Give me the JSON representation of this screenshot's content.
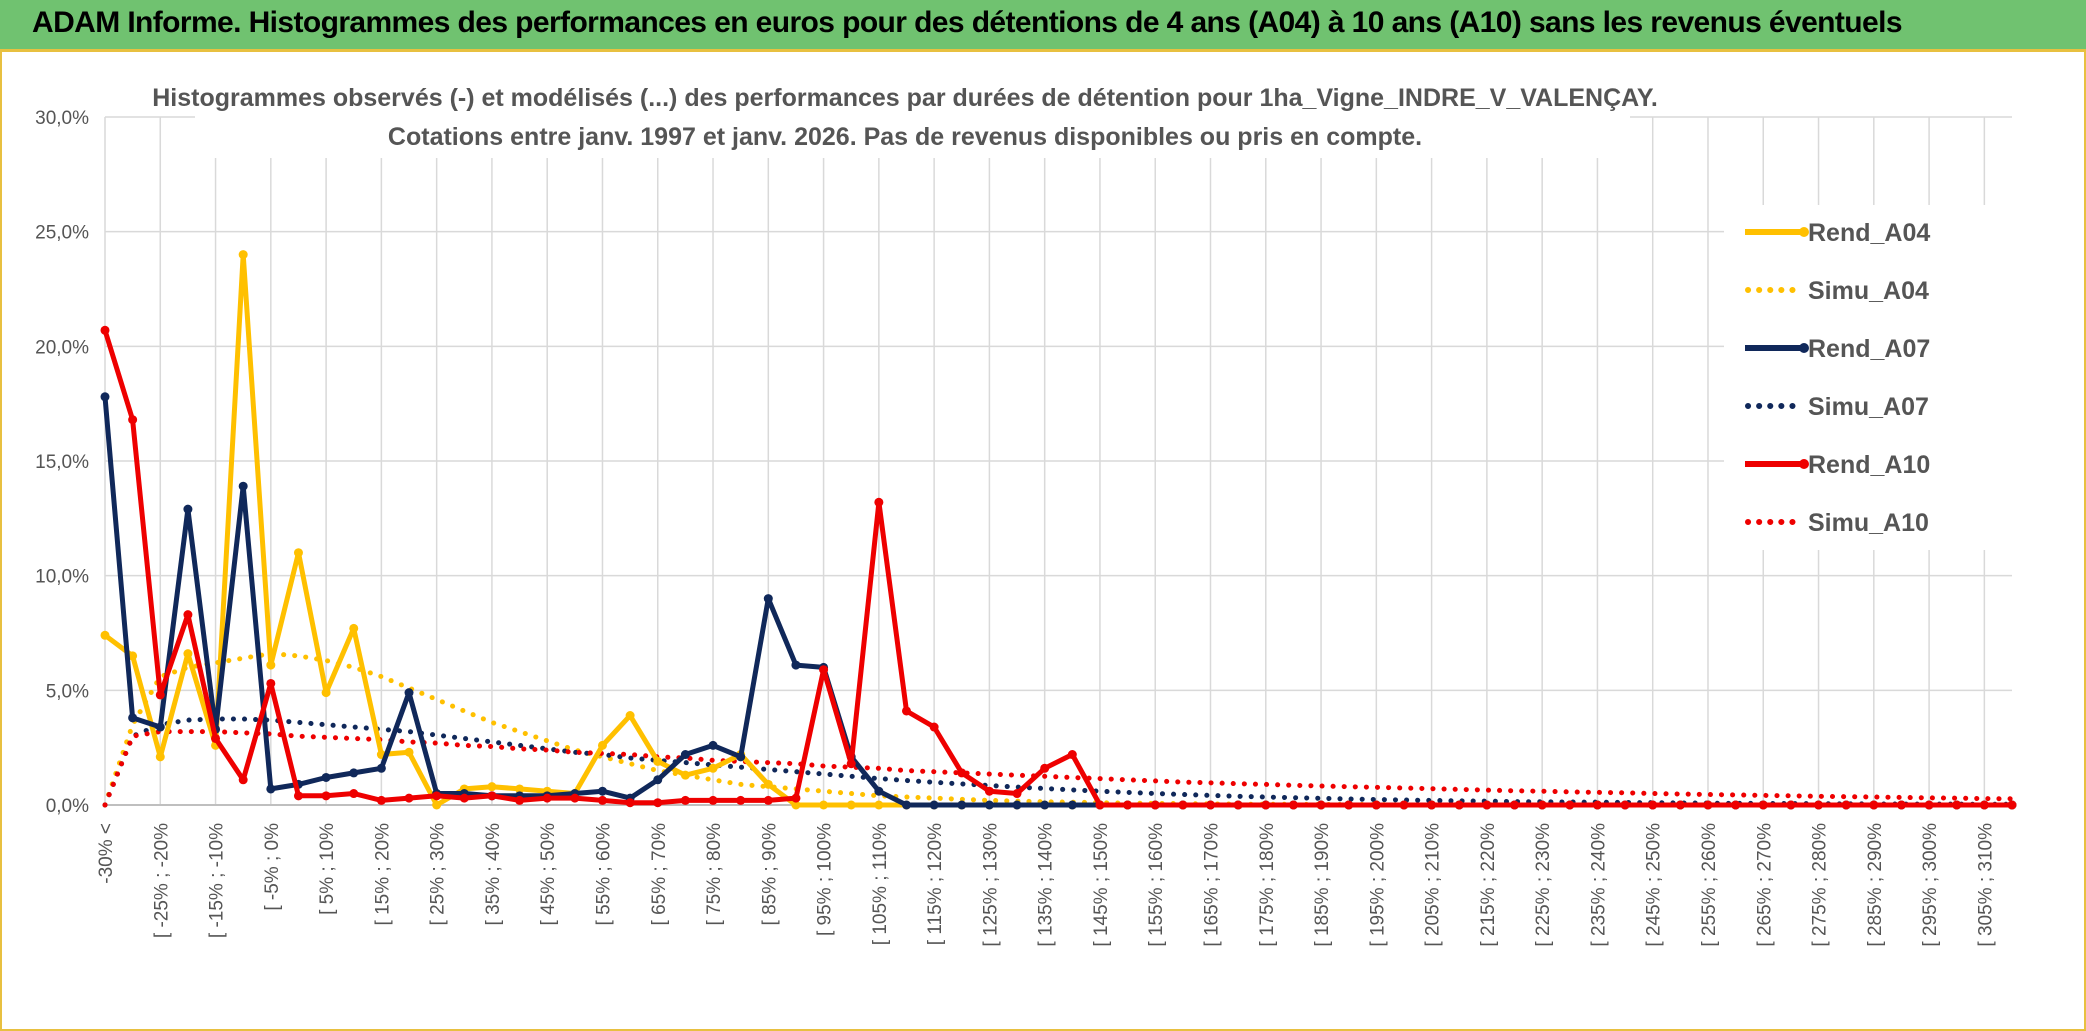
{
  "header": {
    "title": "ADAM Informe. Histogrammes des performances en euros pour des détentions de 4 ans (A04) à 10 ans (A10) sans les revenus éventuels"
  },
  "chart_data": {
    "type": "line",
    "title": "Histogrammes observés (-) et modélisés (...) des performances par durées de détention pour 1ha_Vigne_INDRE_V_VALENÇAY.",
    "subtitle": "Cotations entre janv. 1997 et janv. 2026. Pas de revenus disponibles ou pris en compte.",
    "ylim": [
      0,
      30
    ],
    "yticks": [
      "0,0%",
      "5,0%",
      "10,0%",
      "15,0%",
      "20,0%",
      "25,0%",
      "30,0%"
    ],
    "tick_labels": [
      "-30% <",
      "[ -25% ; -20%",
      "[ -15% ; -10%",
      "[ -5% ; 0%",
      "[ 5% ; 10%",
      "[ 15% ; 20%",
      "[ 25% ; 30%",
      "[ 35% ; 40%",
      "[ 45% ; 50%",
      "[ 55% ; 60%",
      "[ 65% ; 70%",
      "[ 75% ; 80%",
      "[ 85% ; 90%",
      "[ 95% ; 100%",
      "[ 105% ; 110%",
      "[ 115% ; 120%",
      "[ 125% ; 130%",
      "[ 135% ; 140%",
      "[ 145% ; 150%",
      "[ 155% ; 160%",
      "[ 165% ; 170%",
      "[ 175% ; 180%",
      "[ 185% ; 190%",
      "[ 195% ; 200%",
      "[ 205% ; 210%",
      "[ 215% ; 220%",
      "[ 225% ; 230%",
      "[ 235% ; 240%",
      "[ 245% ; 250%",
      "[ 255% ; 260%",
      "[ 265% ; 270%",
      "[ 275% ; 280%",
      "[ 285% ; 290%",
      "[ 295% ; 300%",
      "[ 305% ; 310%"
    ],
    "n_points": 70,
    "series": [
      {
        "name": "Rend_A04",
        "style": "solid",
        "color": "#ffc000",
        "values": [
          7.4,
          6.5,
          2.1,
          6.6,
          2.6,
          24.0,
          6.1,
          11.0,
          4.9,
          7.7,
          2.2,
          2.3,
          0.0,
          0.7,
          0.8,
          0.7,
          0.6,
          0.5,
          2.6,
          3.9,
          1.9,
          1.3,
          1.6,
          2.2,
          0.9,
          0.0,
          0.0,
          0.0,
          0.0,
          0.0,
          0.0,
          0.0,
          0.0,
          0.0,
          0.0,
          0.0,
          0.0,
          0.0,
          0.0,
          0.0,
          0.0,
          0.0,
          0.0,
          0.0,
          0.0,
          0.0,
          0.0,
          0.0,
          0.0,
          0.0,
          0.0,
          0.0,
          0.0,
          0.0,
          0.0,
          0.0,
          0.0,
          0.0,
          0.0,
          0.0,
          0.0,
          0.0,
          0.0,
          0.0,
          0.0,
          0.0,
          0.0,
          0.0,
          0.0,
          0.0
        ]
      },
      {
        "name": "Simu_A04",
        "style": "dotted",
        "color": "#ffc000",
        "values": [
          0.0,
          3.5,
          5.6,
          6.0,
          6.2,
          6.4,
          6.6,
          6.5,
          6.3,
          6.0,
          5.6,
          5.1,
          4.6,
          4.1,
          3.6,
          3.2,
          2.8,
          2.4,
          2.1,
          1.8,
          1.5,
          1.3,
          1.1,
          0.9,
          0.8,
          0.7,
          0.6,
          0.5,
          0.4,
          0.35,
          0.3,
          0.25,
          0.2,
          0.17,
          0.14,
          0.12,
          0.1,
          0.08,
          0.07,
          0.06,
          0.05,
          0.04,
          0.03,
          0.03,
          0.02,
          0.02,
          0.02,
          0.01,
          0.01,
          0.01,
          0.01,
          0.01,
          0.0,
          0.0,
          0.0,
          0.0,
          0.0,
          0.0,
          0.0,
          0.0,
          0.0,
          0.0,
          0.0,
          0.0,
          0.0,
          0.0,
          0.0,
          0.0,
          0.0,
          0.0
        ]
      },
      {
        "name": "Rend_A07",
        "style": "solid",
        "color": "#10285a",
        "values": [
          17.8,
          3.8,
          3.4,
          12.9,
          3.3,
          13.9,
          0.7,
          0.9,
          1.2,
          1.4,
          1.6,
          4.9,
          0.5,
          0.5,
          0.4,
          0.4,
          0.4,
          0.5,
          0.6,
          0.3,
          1.1,
          2.2,
          2.6,
          2.1,
          9.0,
          6.1,
          6.0,
          2.1,
          0.6,
          0.0,
          0.0,
          0.0,
          0.0,
          0.0,
          0.0,
          0.0,
          0.0,
          0.0,
          0.0,
          0.0,
          0.0,
          0.0,
          0.0,
          0.0,
          0.0,
          0.0,
          0.0,
          0.0,
          0.0,
          0.0,
          0.0,
          0.0,
          0.0,
          0.0,
          0.0,
          0.0,
          0.0,
          0.0,
          0.0,
          0.0,
          0.0,
          0.0,
          0.0,
          0.0,
          0.0,
          0.0,
          0.0,
          0.0,
          0.0,
          0.0
        ]
      },
      {
        "name": "Simu_A07",
        "style": "dotted",
        "color": "#10285a",
        "values": [
          0.0,
          3.0,
          3.5,
          3.7,
          3.75,
          3.75,
          3.7,
          3.6,
          3.5,
          3.4,
          3.3,
          3.2,
          3.05,
          2.9,
          2.75,
          2.6,
          2.45,
          2.3,
          2.2,
          2.05,
          1.95,
          1.85,
          1.75,
          1.65,
          1.55,
          1.45,
          1.35,
          1.25,
          1.15,
          1.07,
          0.99,
          0.92,
          0.85,
          0.78,
          0.72,
          0.66,
          0.6,
          0.55,
          0.5,
          0.46,
          0.42,
          0.38,
          0.35,
          0.32,
          0.29,
          0.26,
          0.24,
          0.22,
          0.2,
          0.18,
          0.17,
          0.15,
          0.14,
          0.13,
          0.12,
          0.11,
          0.1,
          0.09,
          0.08,
          0.07,
          0.07,
          0.06,
          0.06,
          0.05,
          0.05,
          0.04,
          0.04,
          0.04,
          0.03,
          0.03
        ]
      },
      {
        "name": "Rend_A10",
        "style": "solid",
        "color": "#ee0000",
        "values": [
          20.7,
          16.8,
          4.8,
          8.3,
          2.9,
          1.1,
          5.3,
          0.4,
          0.4,
          0.5,
          0.2,
          0.3,
          0.4,
          0.3,
          0.4,
          0.2,
          0.3,
          0.3,
          0.2,
          0.1,
          0.1,
          0.2,
          0.2,
          0.2,
          0.2,
          0.3,
          5.9,
          1.8,
          13.2,
          4.1,
          3.4,
          1.4,
          0.6,
          0.5,
          1.6,
          2.2,
          0.0,
          0.0,
          0.0,
          0.0,
          0.0,
          0.0,
          0.0,
          0.0,
          0.0,
          0.0,
          0.0,
          0.0,
          0.0,
          0.0,
          0.0,
          0.0,
          0.0,
          0.0,
          0.0,
          0.0,
          0.0,
          0.0,
          0.0,
          0.0,
          0.0,
          0.0,
          0.0,
          0.0,
          0.0,
          0.0,
          0.0,
          0.0,
          0.0,
          0.0
        ]
      },
      {
        "name": "Simu_A10",
        "style": "dotted",
        "color": "#ee0000",
        "values": [
          0.0,
          3.0,
          3.2,
          3.2,
          3.2,
          3.15,
          3.1,
          3.0,
          2.95,
          2.9,
          2.85,
          2.75,
          2.7,
          2.6,
          2.55,
          2.45,
          2.4,
          2.3,
          2.25,
          2.2,
          2.1,
          2.05,
          1.95,
          1.9,
          1.85,
          1.8,
          1.7,
          1.65,
          1.6,
          1.5,
          1.45,
          1.4,
          1.35,
          1.3,
          1.25,
          1.2,
          1.15,
          1.1,
          1.05,
          1.0,
          0.97,
          0.93,
          0.9,
          0.86,
          0.83,
          0.8,
          0.77,
          0.74,
          0.71,
          0.68,
          0.65,
          0.62,
          0.6,
          0.57,
          0.55,
          0.53,
          0.5,
          0.48,
          0.46,
          0.44,
          0.42,
          0.4,
          0.38,
          0.36,
          0.35,
          0.33,
          0.31,
          0.3,
          0.28,
          0.27
        ]
      }
    ],
    "legend_position": "right"
  }
}
